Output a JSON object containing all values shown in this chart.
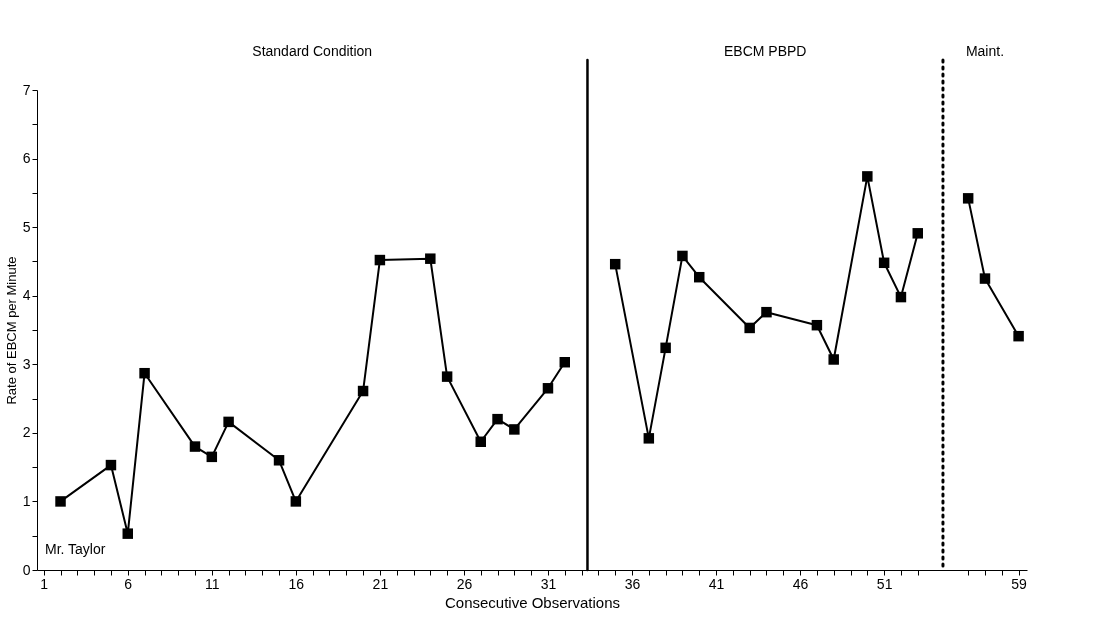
{
  "chart_data": {
    "type": "line",
    "xlabel": "Consecutive Observations",
    "ylabel": "Rate of EBCM per Minute",
    "annotations": [
      "Standard Condition",
      "EBCM PBPD",
      "Maint.",
      "Mr. Taylor"
    ],
    "series": [
      {
        "color": "#000000",
        "x": [
          2,
          5,
          6,
          7,
          10,
          11,
          12,
          15,
          16,
          20,
          21,
          24,
          25,
          27,
          28,
          29,
          31,
          32
        ],
        "values": [
          1.0,
          1.53,
          0.53,
          2.87,
          1.8,
          1.65,
          2.16,
          1.6,
          1.0,
          2.61,
          4.52,
          4.54,
          2.82,
          1.87,
          2.2,
          2.05,
          2.65,
          3.03
        ]
      },
      {
        "color": "#000000",
        "x": [
          35,
          37,
          38,
          39,
          40,
          43,
          44,
          47,
          48,
          50,
          51,
          52,
          53
        ],
        "values": [
          4.46,
          1.92,
          3.24,
          4.58,
          4.27,
          3.53,
          3.76,
          3.57,
          3.07,
          5.74,
          4.48,
          3.98,
          4.91
        ]
      },
      {
        "color": "#000000",
        "x": [
          56,
          57,
          59
        ],
        "values": [
          5.42,
          4.25,
          3.41
        ]
      }
    ],
    "marker": "square",
    "line_style": "solid",
    "xlim": [
      0.6,
      59.5
    ],
    "xticks": [
      1,
      {
        "value": 2,
        "label": null
      },
      {
        "value": 3,
        "label": null
      },
      {
        "value": 4,
        "label": null
      },
      {
        "value": 5,
        "label": null
      },
      6,
      {
        "value": 7,
        "label": null
      },
      {
        "value": 8,
        "label": null
      },
      {
        "value": 9,
        "label": null
      },
      {
        "value": 10,
        "label": null
      },
      11,
      {
        "value": 12,
        "label": null
      },
      {
        "value": 13,
        "label": null
      },
      {
        "value": 14,
        "label": null
      },
      {
        "value": 15,
        "label": null
      },
      16,
      {
        "value": 17,
        "label": null
      },
      {
        "value": 18,
        "label": null
      },
      {
        "value": 19,
        "label": null
      },
      {
        "value": 20,
        "label": null
      },
      21,
      {
        "value": 22,
        "label": null
      },
      {
        "value": 23,
        "label": null
      },
      {
        "value": 24,
        "label": null
      },
      {
        "value": 25,
        "label": null
      },
      26,
      {
        "value": 27,
        "label": null
      },
      {
        "value": 28,
        "label": null
      },
      {
        "value": 29,
        "label": null
      },
      {
        "value": 30,
        "label": null
      },
      31,
      {
        "value": 32,
        "label": null
      },
      {
        "value": 33,
        "label": null
      },
      {
        "value": 34,
        "label": null
      },
      {
        "value": 35,
        "label": null
      },
      36,
      {
        "value": 37,
        "label": null
      },
      {
        "value": 38,
        "label": null
      },
      {
        "value": 39,
        "label": null
      },
      {
        "value": 40,
        "label": null
      },
      41,
      {
        "value": 42,
        "label": null
      },
      {
        "value": 43,
        "label": null
      },
      {
        "value": 44,
        "label": null
      },
      {
        "value": 45,
        "label": null
      },
      46,
      {
        "value": 47,
        "label": null
      },
      {
        "value": 48,
        "label": null
      },
      {
        "value": 49,
        "label": null
      },
      {
        "value": 50,
        "label": null
      },
      51,
      {
        "value": 52,
        "label": null
      },
      {
        "value": 53,
        "label": null
      },
      {
        "value": 56,
        "label": null
      },
      {
        "value": 57,
        "label": null
      },
      {
        "value": 58,
        "label": null
      },
      59
    ],
    "ylim": [
      0,
      7
    ],
    "yticks": [
      0,
      {
        "value": 0.5,
        "label": null
      },
      1,
      {
        "value": 1.5,
        "label": null
      },
      2,
      {
        "value": 2.5,
        "label": null
      },
      3,
      {
        "value": 3.5,
        "label": null
      },
      4,
      {
        "value": 4.5,
        "label": null
      },
      5,
      {
        "value": 5.5,
        "label": null
      },
      6,
      {
        "value": 6.5,
        "label": null
      },
      7
    ],
    "ref_lines": [
      {
        "axis": "x",
        "value": 33.35,
        "color": "#000000",
        "line_style": "solid"
      },
      {
        "axis": "x",
        "value": 54.5,
        "color": "#000000",
        "line_style": "dotted"
      }
    ],
    "grid": false
  }
}
